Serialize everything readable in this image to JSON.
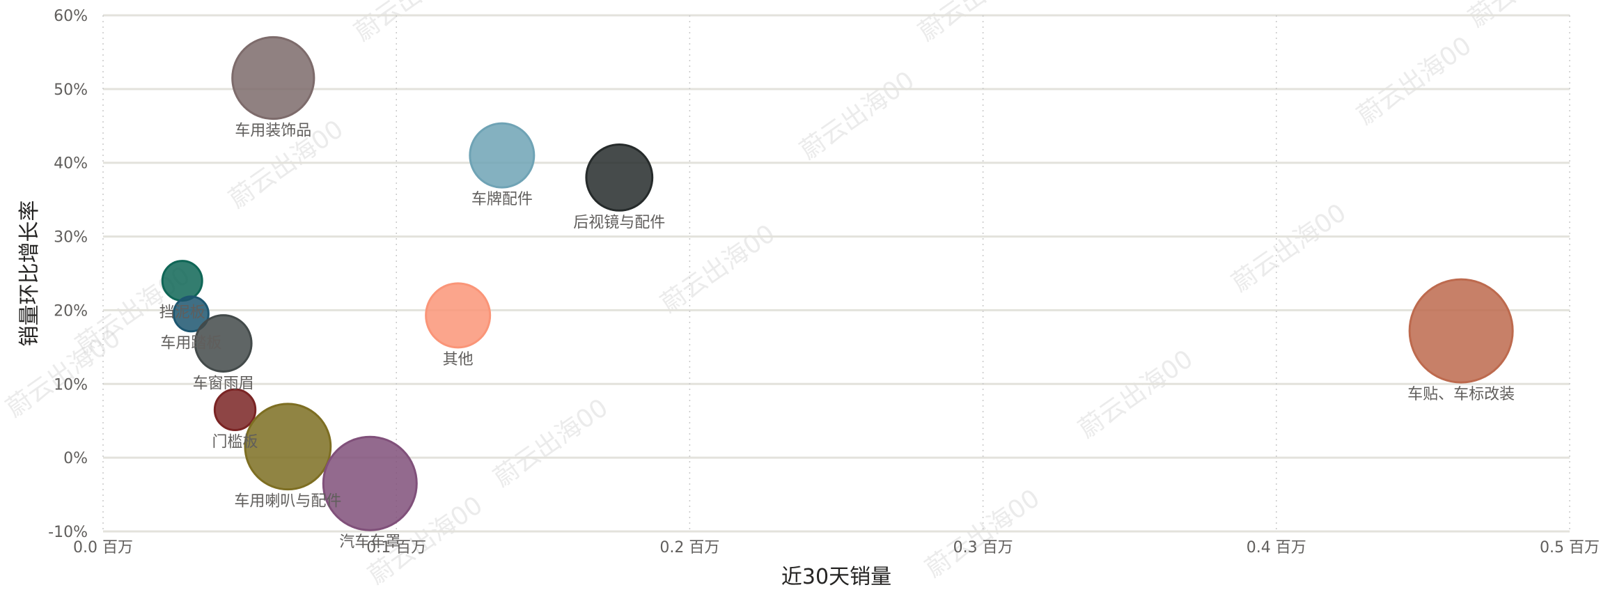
{
  "chart_data": {
    "type": "scatter",
    "xlabel": "近30天销量",
    "ylabel": "销量环比增长率",
    "xlim": [
      0,
      0.5
    ],
    "ylim": [
      -10,
      60
    ],
    "x_ticks": [
      0.0,
      0.1,
      0.2,
      0.3,
      0.4,
      0.5
    ],
    "x_tick_labels": [
      "0.0 百万",
      "0.1 百万",
      "0.2 百万",
      "0.3 百万",
      "0.4 百万",
      "0.5 百万"
    ],
    "y_ticks": [
      -10,
      0,
      10,
      20,
      30,
      40,
      50,
      60
    ],
    "y_tick_labels": [
      "-10%",
      "0%",
      "10%",
      "20%",
      "30%",
      "40%",
      "50%",
      "60%"
    ],
    "grid": true,
    "watermark_text": "蔚云出海00",
    "points": [
      {
        "name": "车用装饰品",
        "x": 0.058,
        "y": 51.5,
        "size": 0.058,
        "color": "#7d6b6b"
      },
      {
        "name": "车牌配件",
        "x": 0.136,
        "y": 41.0,
        "size": 0.04,
        "color": "#6fa3b5"
      },
      {
        "name": "后视镜与配件",
        "x": 0.176,
        "y": 38.0,
        "size": 0.042,
        "color": "#262b2b"
      },
      {
        "name": "挡泥板",
        "x": 0.027,
        "y": 24.0,
        "size": 0.015,
        "color": "#0f6656"
      },
      {
        "name": "车用踏板",
        "x": 0.03,
        "y": 19.5,
        "size": 0.01,
        "color": "#1d5670"
      },
      {
        "name": "车窗雨眉",
        "x": 0.041,
        "y": 15.5,
        "size": 0.032,
        "color": "#434a4a"
      },
      {
        "name": "其他",
        "x": 0.121,
        "y": 19.3,
        "size": 0.04,
        "color": "#fa9578"
      },
      {
        "name": "车贴、车标改装",
        "x": 0.463,
        "y": 17.2,
        "size": 0.08,
        "color": "#bd6a4e"
      },
      {
        "name": "门槛板",
        "x": 0.045,
        "y": 6.5,
        "size": 0.016,
        "color": "#7a2424"
      },
      {
        "name": "车用喇叭与配件",
        "x": 0.063,
        "y": 1.5,
        "size": 0.062,
        "color": "#7d6e22"
      },
      {
        "name": "汽车车罩",
        "x": 0.091,
        "y": -3.5,
        "size": 0.07,
        "color": "#80507a"
      }
    ]
  }
}
